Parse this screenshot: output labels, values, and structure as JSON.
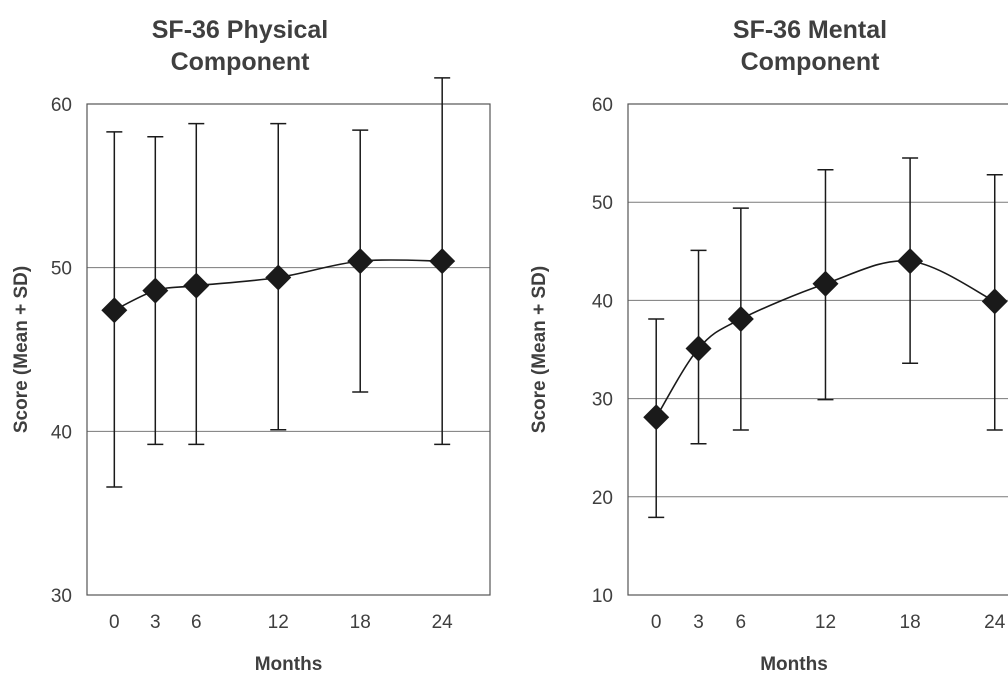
{
  "chart_data": [
    {
      "type": "line",
      "title": "SF-36 Physical Component",
      "title_lines": [
        "SF-36 Physical",
        "Component"
      ],
      "xlabel": "Months",
      "ylabel": "Score (Mean + SD)",
      "x": [
        0,
        3,
        6,
        12,
        18,
        24
      ],
      "x_tick_labels": [
        "0",
        "3",
        "6",
        "12",
        "18",
        "24"
      ],
      "ylim": [
        30,
        60
      ],
      "y_ticks": [
        30,
        40,
        50,
        60
      ],
      "grid": "horizontal",
      "series": [
        {
          "marker": "diamond",
          "color": "#1a1a1a",
          "values": [
            47.4,
            48.6,
            48.9,
            49.4,
            50.4,
            50.4
          ],
          "error_upper": [
            58.3,
            58.0,
            58.8,
            58.8,
            58.4,
            61.6
          ],
          "error_lower": [
            36.6,
            39.2,
            39.2,
            40.1,
            42.4,
            39.2
          ]
        }
      ]
    },
    {
      "type": "line",
      "title": "SF-36 Mental Component",
      "title_lines": [
        "SF-36 Mental",
        "Component"
      ],
      "xlabel": "Months",
      "ylabel": "Score (Mean + SD)",
      "x": [
        0,
        3,
        6,
        12,
        18,
        24
      ],
      "x_tick_labels": [
        "0",
        "3",
        "6",
        "12",
        "18",
        "24"
      ],
      "ylim": [
        10,
        60
      ],
      "y_ticks": [
        10,
        20,
        30,
        40,
        50,
        60
      ],
      "grid": "horizontal",
      "series": [
        {
          "marker": "diamond",
          "color": "#1a1a1a",
          "values": [
            28.1,
            35.1,
            38.1,
            41.7,
            44.0,
            39.9
          ],
          "error_upper": [
            38.1,
            45.1,
            49.4,
            53.3,
            54.5,
            52.8
          ],
          "error_lower": [
            17.9,
            25.4,
            26.8,
            29.9,
            33.6,
            26.8
          ]
        }
      ]
    }
  ]
}
